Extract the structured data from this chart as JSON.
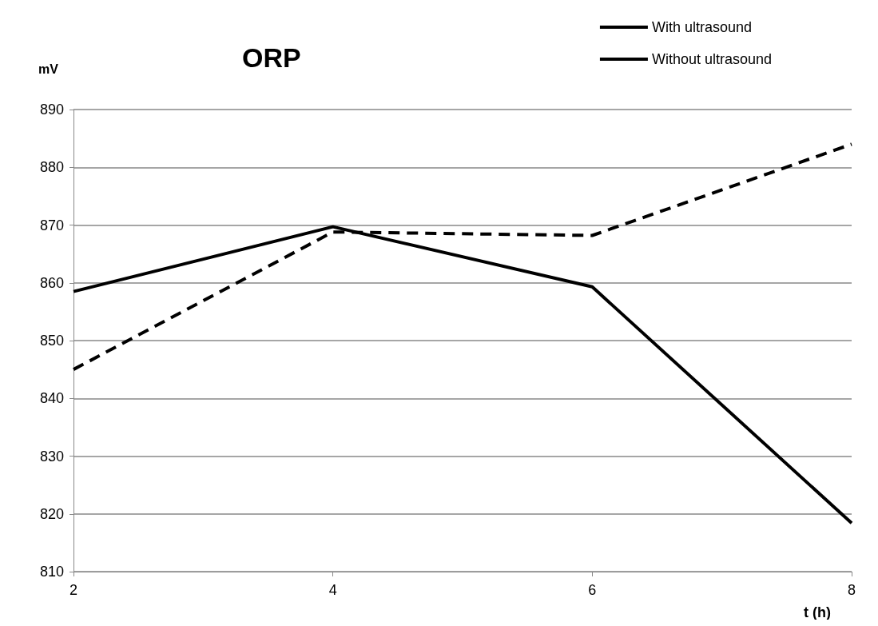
{
  "chart_data": {
    "type": "line",
    "title": "ORP",
    "xlabel": "t (h)",
    "ylabel": "mV",
    "x": [
      2,
      4,
      6,
      8
    ],
    "series": [
      {
        "name": "With ultrasound",
        "color": "#000000",
        "line_style": "solid",
        "values": [
          858.5,
          869.7,
          859.3,
          818.4
        ]
      },
      {
        "name": "Without ultrasound",
        "color": "#000000",
        "line_style": "dashed",
        "values": [
          845,
          868.8,
          868.2,
          884
        ]
      }
    ],
    "xlim": [
      2,
      8
    ],
    "xticks": [
      2,
      4,
      6,
      8
    ],
    "ylim": [
      810,
      890
    ],
    "yticks": [
      810,
      820,
      830,
      840,
      850,
      860,
      870,
      880,
      890
    ],
    "grid": "y",
    "legend": "top right",
    "marker": "none"
  }
}
